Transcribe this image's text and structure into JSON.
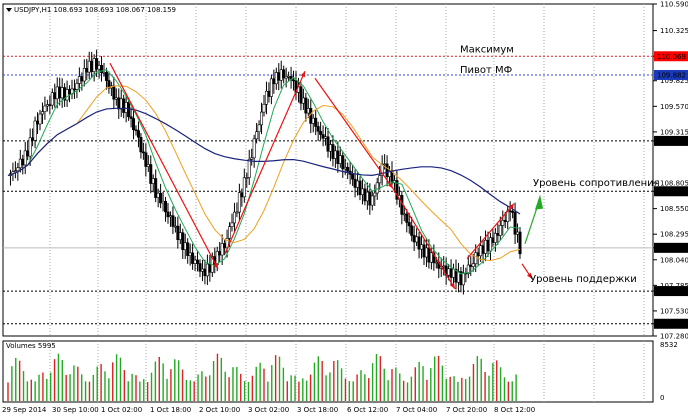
{
  "chart_data": {
    "type": "candlestick",
    "symbol_header": "USDJPY,H1  108.693 108.693 108.067 108.159",
    "volume_header": "Volumes 5995",
    "price_axis": {
      "ylim": [
        107.28,
        110.59
      ],
      "ticks": [
        "110.590",
        "110.325",
        "110.069",
        "109.825",
        "109.570",
        "109.315",
        "109.225",
        "108.805",
        "108.723",
        "108.550",
        "108.295",
        "108.159",
        "108.040",
        "107.785",
        "107.728",
        "107.530",
        "107.402",
        "107.280"
      ]
    },
    "volume_axis": {
      "ylim": [
        0,
        8532
      ],
      "ticks": [
        "8532",
        "0"
      ]
    },
    "x_labels": [
      "29 Sep 2014",
      "30 Sep 10:00",
      "1 Oct 02:00",
      "1 Oct 18:00",
      "2 Oct 10:00",
      "3 Oct 02:00",
      "3 Oct 18:00",
      "6 Oct 12:00",
      "7 Oct 04:00",
      "7 Oct 20:00",
      "8 Oct 12:00"
    ],
    "levels": [
      {
        "value": 110.069,
        "label": "110.069",
        "color": "#dd2222",
        "style": "dotted",
        "badge_bg": "#ff0000",
        "badge_fg": "#ffffff"
      },
      {
        "value": 109.882,
        "label": "109.882",
        "color": "#3344dd",
        "style": "dotted",
        "badge_bg": "#1a3ab8",
        "badge_fg": "#ffffff"
      },
      {
        "value": 109.225,
        "label": "109.225",
        "color": "#000000",
        "style": "dotted",
        "badge_bg": "#000000",
        "badge_fg": "#ffffff"
      },
      {
        "value": 108.723,
        "label": "108.723",
        "color": "#000000",
        "style": "dotted",
        "badge_bg": "#000000",
        "badge_fg": "#ffffff"
      },
      {
        "value": 108.159,
        "label": "108.159",
        "color": "#bbbbbb",
        "style": "solid",
        "badge_bg": "#000000",
        "badge_fg": "#ffffff"
      },
      {
        "value": 107.728,
        "label": "107.728",
        "color": "#000000",
        "style": "dotted",
        "badge_bg": "#000000",
        "badge_fg": "#ffffff"
      },
      {
        "value": 107.402,
        "label": "107.402",
        "color": "#000000",
        "style": "dotted",
        "badge_bg": "#000000",
        "badge_fg": "#ffffff"
      }
    ],
    "annotations": [
      "Максимум",
      "Пивот МФ",
      "Уровень сопротивления",
      "Уровень поддержки"
    ],
    "close_series": [
      108.88,
      108.95,
      109.12,
      109.45,
      109.6,
      109.72,
      109.68,
      109.78,
      109.95,
      110.0,
      109.85,
      109.62,
      109.55,
      109.3,
      109.0,
      108.72,
      108.55,
      108.35,
      108.15,
      108.0,
      107.9,
      108.05,
      108.2,
      108.5,
      108.8,
      109.2,
      109.6,
      109.85,
      109.9,
      109.82,
      109.6,
      109.4,
      109.25,
      109.1,
      109.0,
      108.85,
      108.7,
      108.62,
      108.98,
      108.85,
      108.55,
      108.3,
      108.15,
      108.05,
      107.95,
      107.9,
      107.85,
      108.0,
      108.15,
      108.2,
      108.35,
      108.55,
      108.159
    ],
    "ma_fast_color": "#22aa55",
    "ma_mid_color": "#f0a020",
    "ma_slow_color": "#1a237e"
  }
}
